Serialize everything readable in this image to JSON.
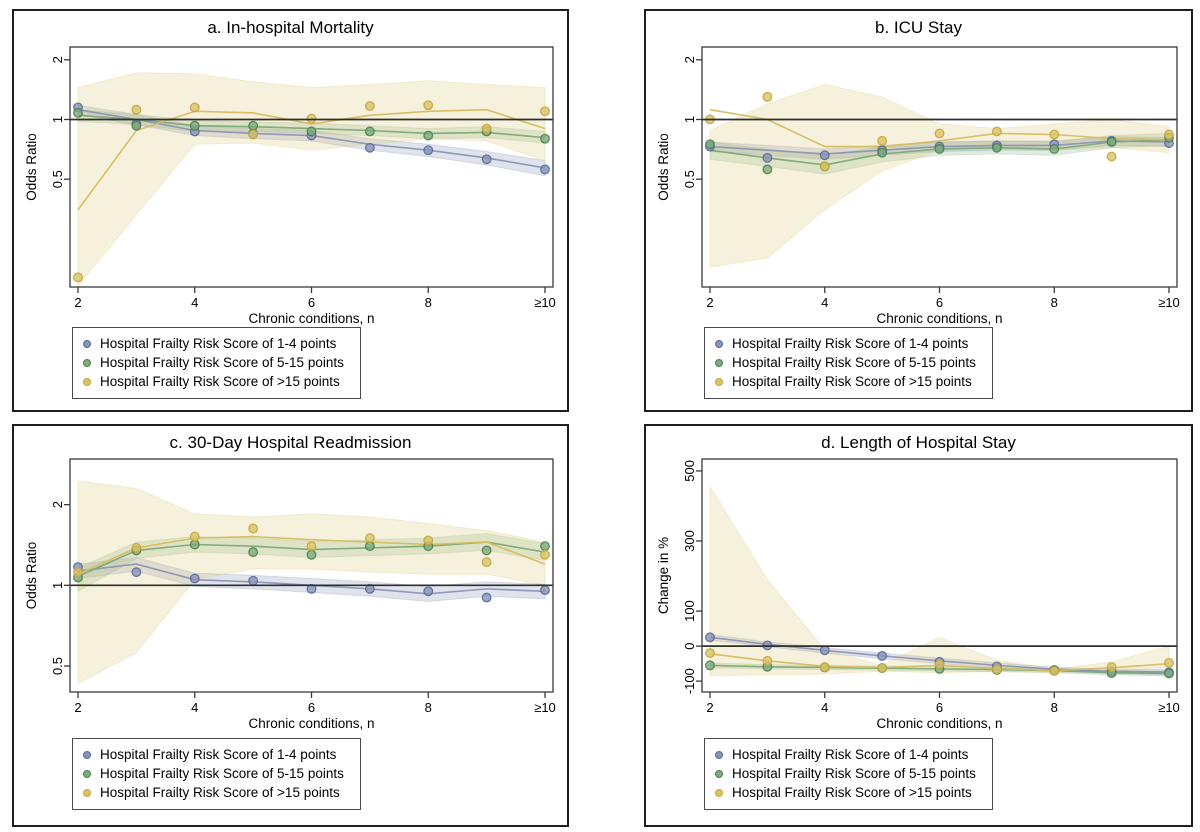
{
  "figure": {
    "background": "#ffffff",
    "panel_border_color": "#1f1f1f",
    "reference_line_color": "#2e2e2e",
    "axis_color": "#3a3a3a"
  },
  "legend": {
    "items": [
      {
        "label": "Hospital Frailty Risk Score of 1-4 points",
        "color": "#8794b8",
        "ring": "#5c6a97"
      },
      {
        "label": "Hospital Frailty Risk Score of 5-15 points",
        "color": "#7cab7c",
        "ring": "#4f7f4f"
      },
      {
        "label": "Hospital Frailty Risk Score of >15 points",
        "color": "#dcc267",
        "ring": "#c3a73e"
      }
    ]
  },
  "series_styles": [
    {
      "name": "hfrs-1-4",
      "line": "#8a94b5",
      "dot": "#8794b8",
      "dot_stroke": "#5c6a97",
      "band": "rgba(130,142,178,0.25)"
    },
    {
      "name": "hfrs-5-15",
      "line": "#79a879",
      "dot": "#7cab7c",
      "dot_stroke": "#4f7f4f",
      "band": "rgba(120,170,120,0.22)"
    },
    {
      "name": "hfrs-gt15",
      "line": "#d7bb5e",
      "dot": "#dcc267",
      "dot_stroke": "#c3a73e",
      "band": "rgba(219,199,120,0.26)"
    }
  ],
  "chart_data": [
    {
      "key": "a",
      "type": "line",
      "title": "a. In-hospital Mortality",
      "ylabel": "Odds Ratio",
      "xlabel": "Chronic conditions, n",
      "yscale": "log",
      "ylim": [
        0.143,
        2.32
      ],
      "refline": 1,
      "yticks": [
        {
          "v": 2,
          "t": "2"
        },
        {
          "v": 1,
          "t": "1"
        },
        {
          "v": 0.5,
          "t": "0.5"
        }
      ],
      "x": [
        2,
        3,
        4,
        5,
        6,
        7,
        8,
        9,
        10
      ],
      "xticks": [
        {
          "v": 2,
          "t": "2"
        },
        {
          "v": 4,
          "t": "4"
        },
        {
          "v": 6,
          "t": "6"
        },
        {
          "v": 8,
          "t": "8"
        },
        {
          "v": 10,
          "t": "≥10"
        }
      ],
      "series": [
        {
          "name": "hfrs-1-4",
          "line": [
            1.12,
            1.0,
            0.88,
            0.85,
            0.83,
            0.75,
            0.7,
            0.64,
            0.57
          ],
          "dots": [
            1.15,
            0.95,
            0.87,
            0.85,
            0.83,
            0.72,
            0.7,
            0.63,
            0.56
          ],
          "upper": [
            1.18,
            1.06,
            0.93,
            0.9,
            0.88,
            0.8,
            0.75,
            0.69,
            0.62
          ],
          "lower": [
            1.06,
            0.94,
            0.83,
            0.8,
            0.78,
            0.7,
            0.65,
            0.59,
            0.52
          ]
        },
        {
          "name": "hfrs-5-15",
          "line": [
            1.05,
            1.0,
            0.93,
            0.92,
            0.9,
            0.88,
            0.85,
            0.86,
            0.81
          ],
          "dots": [
            1.08,
            0.93,
            0.93,
            0.93,
            0.87,
            0.87,
            0.83,
            0.87,
            0.8
          ],
          "upper": [
            1.12,
            1.06,
            0.99,
            0.97,
            0.96,
            0.93,
            0.9,
            0.92,
            0.87
          ],
          "lower": [
            0.98,
            0.94,
            0.87,
            0.87,
            0.85,
            0.83,
            0.8,
            0.81,
            0.76
          ]
        },
        {
          "name": "hfrs-gt15",
          "line": [
            0.35,
            0.88,
            1.1,
            1.08,
            0.95,
            1.05,
            1.1,
            1.12,
            0.9
          ],
          "dots": [
            0.16,
            1.12,
            1.15,
            0.84,
            1.01,
            1.17,
            1.18,
            0.9,
            1.1
          ],
          "upper": [
            1.45,
            1.72,
            1.7,
            1.55,
            1.45,
            1.5,
            1.57,
            1.5,
            1.45
          ],
          "lower": [
            0.145,
            0.33,
            0.75,
            0.76,
            0.7,
            0.75,
            0.8,
            0.78,
            0.62
          ]
        }
      ]
    },
    {
      "key": "b",
      "type": "line",
      "title": "b. ICU Stay",
      "ylabel": "Odds Ratio",
      "xlabel": "Chronic conditions, n",
      "yscale": "log",
      "ylim": [
        0.143,
        2.32
      ],
      "refline": 1,
      "yticks": [
        {
          "v": 2,
          "t": "2"
        },
        {
          "v": 1,
          "t": "1"
        },
        {
          "v": 0.5,
          "t": "0.5"
        }
      ],
      "x": [
        2,
        3,
        4,
        5,
        6,
        7,
        8,
        9,
        10
      ],
      "xticks": [
        {
          "v": 2,
          "t": "2"
        },
        {
          "v": 4,
          "t": "4"
        },
        {
          "v": 6,
          "t": "6"
        },
        {
          "v": 8,
          "t": "8"
        },
        {
          "v": 10,
          "t": "≥10"
        }
      ],
      "series": [
        {
          "name": "hfrs-1-4",
          "line": [
            0.73,
            0.7,
            0.67,
            0.7,
            0.73,
            0.74,
            0.74,
            0.78,
            0.77
          ],
          "dots": [
            0.73,
            0.64,
            0.66,
            0.7,
            0.73,
            0.74,
            0.75,
            0.78,
            0.76
          ],
          "upper": [
            0.77,
            0.74,
            0.71,
            0.74,
            0.77,
            0.78,
            0.78,
            0.82,
            0.81
          ],
          "lower": [
            0.69,
            0.66,
            0.63,
            0.66,
            0.69,
            0.7,
            0.7,
            0.74,
            0.73
          ]
        },
        {
          "name": "hfrs-5-15",
          "line": [
            0.7,
            0.64,
            0.59,
            0.67,
            0.71,
            0.72,
            0.71,
            0.77,
            0.79
          ],
          "dots": [
            0.75,
            0.56,
            0.58,
            0.68,
            0.71,
            0.72,
            0.71,
            0.77,
            0.81
          ],
          "upper": [
            0.77,
            0.71,
            0.66,
            0.73,
            0.77,
            0.78,
            0.77,
            0.83,
            0.85
          ],
          "lower": [
            0.63,
            0.58,
            0.53,
            0.61,
            0.66,
            0.67,
            0.66,
            0.72,
            0.74
          ]
        },
        {
          "name": "hfrs-gt15",
          "line": [
            1.12,
            1.0,
            0.73,
            0.73,
            0.78,
            0.85,
            0.84,
            0.8,
            0.79
          ],
          "dots": [
            1.0,
            1.3,
            0.58,
            0.78,
            0.85,
            0.87,
            0.84,
            0.65,
            0.84
          ],
          "upper": [
            0.88,
            1.2,
            1.5,
            1.3,
            0.95,
            0.9,
            0.95,
            1.0,
            0.92
          ],
          "lower": [
            0.18,
            0.2,
            0.35,
            0.55,
            0.7,
            0.72,
            0.7,
            0.72,
            0.68
          ]
        }
      ]
    },
    {
      "key": "c",
      "type": "line",
      "title": "c. 30-Day Hospital Readmission",
      "ylabel": "Odds Ratio",
      "xlabel": "Chronic conditions, n",
      "yscale": "log",
      "ylim": [
        0.4,
        2.96
      ],
      "refline": 1,
      "yticks": [
        {
          "v": 2,
          "t": "2"
        },
        {
          "v": 1,
          "t": "1"
        },
        {
          "v": 0.5,
          "t": "0.5"
        }
      ],
      "x": [
        2,
        3,
        4,
        5,
        6,
        7,
        8,
        9,
        10
      ],
      "xticks": [
        {
          "v": 2,
          "t": "2"
        },
        {
          "v": 4,
          "t": "4"
        },
        {
          "v": 6,
          "t": "6"
        },
        {
          "v": 8,
          "t": "8"
        },
        {
          "v": 10,
          "t": "≥10"
        }
      ],
      "series": [
        {
          "name": "hfrs-1-4",
          "line": [
            1.13,
            1.2,
            1.05,
            1.03,
            1.0,
            0.97,
            0.93,
            0.97,
            0.95
          ],
          "dots": [
            1.17,
            1.12,
            1.06,
            1.04,
            0.97,
            0.97,
            0.95,
            0.9,
            0.96
          ],
          "upper": [
            1.2,
            1.27,
            1.11,
            1.09,
            1.06,
            1.03,
            0.99,
            1.03,
            1.01
          ],
          "lower": [
            1.06,
            1.13,
            0.99,
            0.97,
            0.94,
            0.91,
            0.87,
            0.91,
            0.89
          ]
        },
        {
          "name": "hfrs-5-15",
          "line": [
            1.08,
            1.35,
            1.42,
            1.4,
            1.36,
            1.38,
            1.4,
            1.45,
            1.33
          ],
          "dots": [
            1.07,
            1.35,
            1.42,
            1.33,
            1.3,
            1.4,
            1.4,
            1.35,
            1.4
          ],
          "upper": [
            1.16,
            1.45,
            1.52,
            1.5,
            1.46,
            1.48,
            1.5,
            1.56,
            1.43
          ],
          "lower": [
            0.95,
            1.26,
            1.33,
            1.31,
            1.27,
            1.29,
            1.31,
            1.35,
            1.24
          ]
        },
        {
          "name": "hfrs-gt15",
          "line": [
            1.1,
            1.38,
            1.5,
            1.52,
            1.48,
            1.45,
            1.42,
            1.45,
            1.2
          ],
          "dots": [
            1.12,
            1.38,
            1.52,
            1.63,
            1.4,
            1.5,
            1.47,
            1.22,
            1.3
          ],
          "upper": [
            2.45,
            2.3,
            1.85,
            1.8,
            1.85,
            1.8,
            1.7,
            1.6,
            1.45
          ],
          "lower": [
            0.43,
            0.56,
            1.05,
            1.15,
            1.15,
            1.12,
            1.1,
            1.1,
            1.0
          ]
        }
      ]
    },
    {
      "key": "d",
      "type": "line",
      "title": "d. Length of Hospital Stay",
      "ylabel": "Change in %",
      "xlabel": "Chronic conditions, n",
      "yscale": "linear",
      "ylim": [
        -131,
        534
      ],
      "refline": 0,
      "yticks": [
        {
          "v": 500,
          "t": "500"
        },
        {
          "v": 300,
          "t": "300"
        },
        {
          "v": 100,
          "t": "100"
        },
        {
          "v": 0,
          "t": "0"
        },
        {
          "v": -100,
          "t": "-100"
        }
      ],
      "x": [
        2,
        3,
        4,
        5,
        6,
        7,
        8,
        9,
        10
      ],
      "xticks": [
        {
          "v": 2,
          "t": "2"
        },
        {
          "v": 4,
          "t": "4"
        },
        {
          "v": 6,
          "t": "6"
        },
        {
          "v": 8,
          "t": "8"
        },
        {
          "v": 10,
          "t": "≥10"
        }
      ],
      "series": [
        {
          "name": "hfrs-1-4",
          "line": [
            25,
            5,
            -12,
            -28,
            -42,
            -55,
            -66,
            -72,
            -74
          ],
          "dots": [
            25,
            2,
            -12,
            -28,
            -45,
            -58,
            -68,
            -72,
            -75
          ],
          "upper": [
            33,
            12,
            -4,
            -20,
            -34,
            -48,
            -60,
            -66,
            -66
          ],
          "lower": [
            17,
            -2,
            -20,
            -36,
            -50,
            -62,
            -72,
            -78,
            -82
          ]
        },
        {
          "name": "hfrs-5-15",
          "line": [
            -55,
            -59,
            -61,
            -63,
            -65,
            -67,
            -70,
            -76,
            -78
          ],
          "dots": [
            -55,
            -59,
            -61,
            -63,
            -65,
            -68,
            -70,
            -77,
            -78
          ],
          "upper": [
            -48,
            -53,
            -55,
            -57,
            -59,
            -61,
            -64,
            -70,
            -71
          ],
          "lower": [
            -62,
            -65,
            -67,
            -69,
            -71,
            -73,
            -76,
            -82,
            -85
          ]
        },
        {
          "name": "hfrs-gt15",
          "line": [
            -22,
            -42,
            -58,
            -61,
            -55,
            -64,
            -70,
            -62,
            -50
          ],
          "dots": [
            -20,
            -42,
            -60,
            -62,
            -52,
            -66,
            -71,
            -60,
            -48
          ],
          "upper": [
            455,
            190,
            -10,
            -55,
            25,
            -40,
            -66,
            -45,
            0
          ],
          "lower": [
            -85,
            -82,
            -80,
            -72,
            -76,
            -73,
            -75,
            -72,
            -60
          ]
        }
      ]
    }
  ]
}
